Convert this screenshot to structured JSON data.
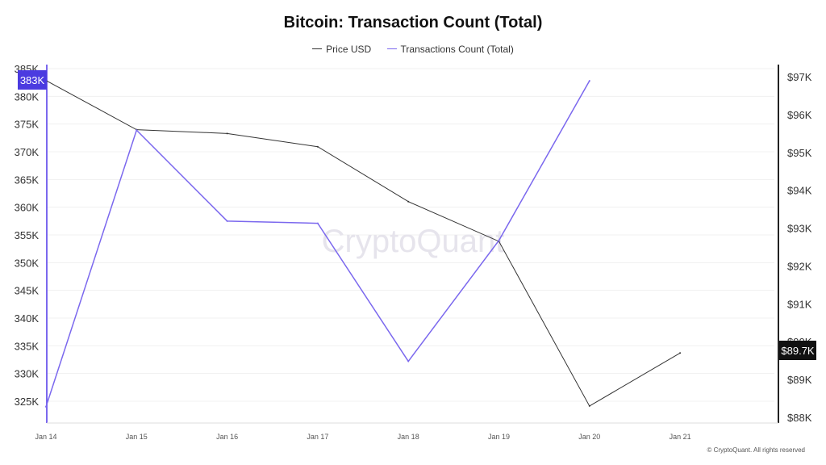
{
  "chart_data": {
    "type": "line",
    "title": "Bitcoin: Transaction Count (Total)",
    "categories": [
      "Jan 14",
      "Jan 15",
      "Jan 16",
      "Jan 17",
      "Jan 18",
      "Jan 19",
      "Jan 20",
      "Jan 21"
    ],
    "series": [
      {
        "name": "Price USD",
        "axis": "right",
        "color": "#333333",
        "values": [
          96900,
          95600,
          95500,
          95150,
          93700,
          92650,
          88300,
          89700
        ]
      },
      {
        "name": "Transactions Count (Total)",
        "axis": "left",
        "color": "#7b68ee",
        "values": [
          324000,
          373900,
          357500,
          357100,
          332200,
          354000,
          382800,
          null
        ]
      }
    ],
    "left_axis": {
      "ticks": [
        "325K",
        "330K",
        "335K",
        "340K",
        "345K",
        "350K",
        "355K",
        "360K",
        "365K",
        "370K",
        "375K",
        "380K",
        "385K"
      ],
      "range": [
        325000,
        385000
      ]
    },
    "right_axis": {
      "ticks": [
        "$88K",
        "$89K",
        "$90K",
        "$91K",
        "$92K",
        "$93K",
        "$94K",
        "$95K",
        "$96K",
        "$97K"
      ],
      "range": [
        88000,
        97000
      ]
    },
    "left_marker": "383K",
    "right_marker": "$89.7K",
    "left_marker_color": "#4b3be0",
    "grid": true,
    "legend": "top-center"
  },
  "watermark": "CryptoQuant",
  "footer": "© CryptoQuant. All rights reserved"
}
